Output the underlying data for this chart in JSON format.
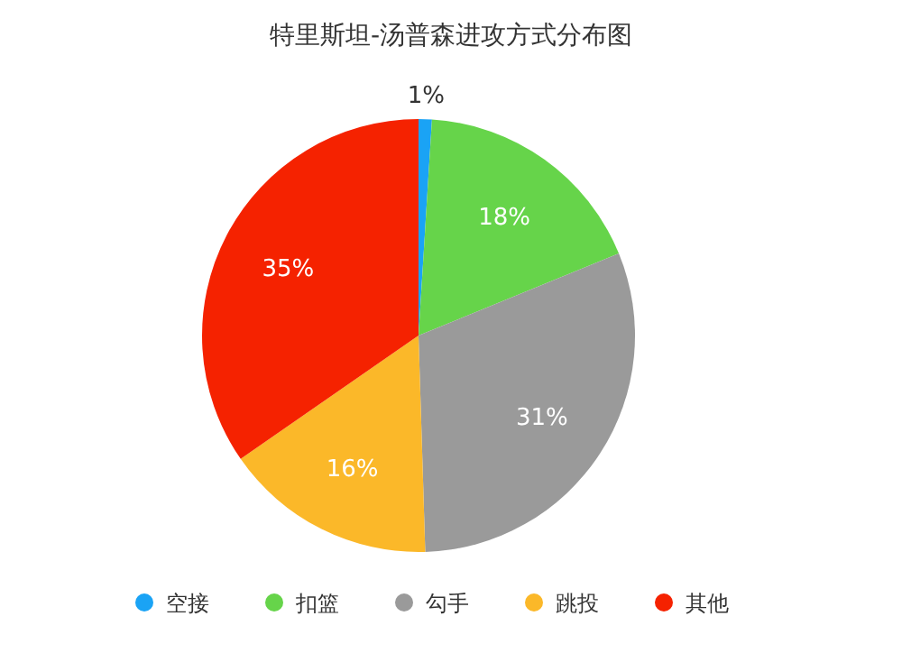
{
  "chart_data": {
    "type": "pie",
    "title": "特里斯坦-汤普森进攻方式分布图",
    "categories": [
      "空接",
      "扣篮",
      "勾手",
      "跳投",
      "其他"
    ],
    "values": [
      1,
      18,
      31,
      16,
      35
    ],
    "colors": [
      "#1aa3f5",
      "#66d44a",
      "#9a9a9a",
      "#fbb829",
      "#f52200"
    ],
    "value_labels": [
      "1%",
      "18%",
      "31%",
      "16%",
      "35%"
    ],
    "legend": "bottom"
  }
}
